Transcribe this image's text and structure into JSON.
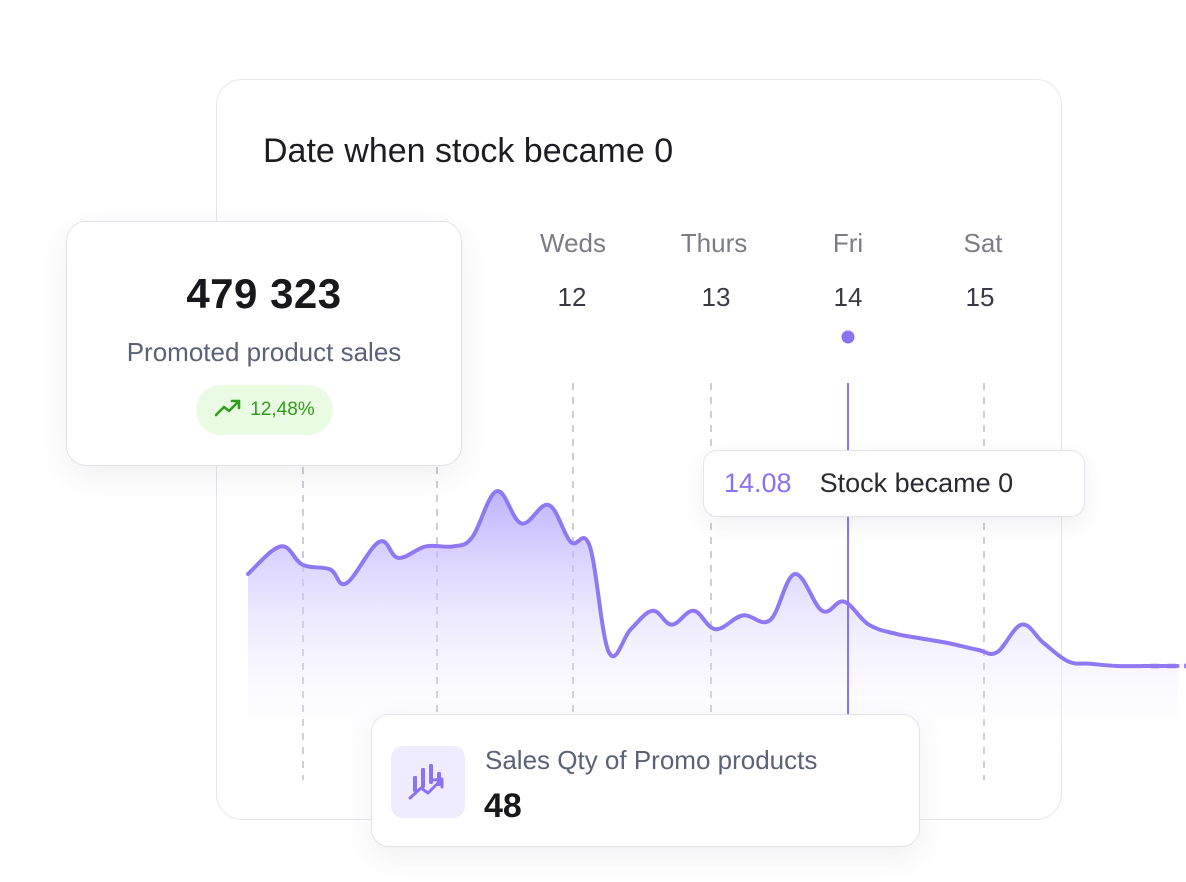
{
  "chart_data": {
    "type": "area",
    "title": "Date when stock became 0",
    "x_axis": {
      "day_names": [
        "Weds",
        "Thurs",
        "Fri",
        "Sat"
      ],
      "day_numbers": [
        "12",
        "13",
        "14",
        "15"
      ]
    },
    "highlight": {
      "day": "14",
      "date_label": "14.08",
      "event_label": "Stock became 0"
    },
    "series": [
      {
        "x": [
          0,
          0.24,
          0.4,
          0.6,
          0.72,
          0.96,
          1.1,
          1.3,
          1.5,
          1.64,
          1.82,
          2,
          2.2,
          2.36,
          2.5,
          2.64,
          2.8,
          2.96,
          3.1,
          3.26,
          3.42,
          3.62,
          3.82,
          4,
          4.2,
          4.36,
          4.54,
          4.74,
          4.92,
          5.12,
          5.34,
          5.48,
          5.66,
          5.82,
          6,
          6.16,
          6.36,
          6.6,
          6.8
        ],
        "values": [
          2.0,
          2.6,
          2.2,
          2.1,
          1.8,
          2.7,
          2.35,
          2.6,
          2.6,
          2.8,
          3.8,
          3.1,
          3.5,
          2.7,
          2.6,
          0.3,
          0.8,
          1.2,
          0.9,
          1.2,
          0.8,
          1.1,
          1.0,
          2.0,
          1.2,
          1.4,
          0.9,
          0.7,
          0.6,
          0.5,
          0.35,
          0.3,
          0.9,
          0.5,
          0.1,
          0.05,
          0.0,
          0.0,
          0.0
        ]
      }
    ],
    "projected_from_x": 6.6,
    "projected_to_x": 7.57
  },
  "summary_card": {
    "value": "479 323",
    "label": "Promoted product sales",
    "trend_icon": "trending-up-icon",
    "trend_percent": "12,48%"
  },
  "qty_card": {
    "icon": "chart-trend-icon",
    "label": "Sales Qty of Promo products",
    "value": "48"
  },
  "colors": {
    "accent": "#8b72f0",
    "line": "#8e79f3",
    "fill_top": "#b3a5ff",
    "trend_green": "#2f9e1a",
    "trend_bg": "#eafbe3",
    "gridline": "#b8b8c0"
  }
}
